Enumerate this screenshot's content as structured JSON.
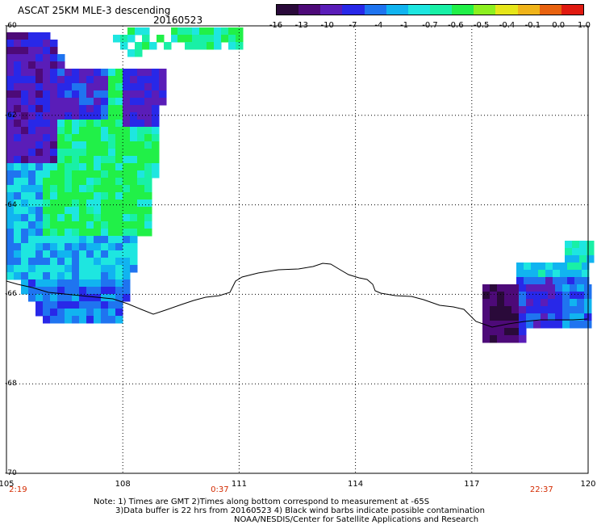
{
  "header": {
    "title": "ASCAT 25KM MLE-3 descending",
    "date": "20160523"
  },
  "colorbar": {
    "ticks": [
      "-16",
      "-13",
      "-10",
      "-7",
      "-4",
      "-1",
      "-0.7",
      "-0.6",
      "-0.5",
      "-0.4",
      "-0.1",
      "0.0",
      "1.0"
    ],
    "colors": [
      "#2a0a3a",
      "#4d0a78",
      "#5a1db8",
      "#2828e8",
      "#1f74f0",
      "#11b4f0",
      "#1ee6e0",
      "#19f0a6",
      "#21f048",
      "#8df020",
      "#e6e61a",
      "#f0b41a",
      "#e8620f",
      "#e01a10"
    ]
  },
  "axes": {
    "lat_labels": [
      "-60",
      "-62",
      "-64",
      "-66",
      "-68",
      "-70"
    ],
    "lat_values": [
      -60,
      -62,
      -64,
      -66,
      -68,
      -70
    ],
    "lon_labels": [
      "105",
      "108",
      "111",
      "114",
      "117",
      "120"
    ],
    "lon_values": [
      105,
      108,
      111,
      114,
      117,
      120
    ],
    "time_labels": [
      "2:19",
      "0:37",
      "22:37"
    ],
    "time_lons": [
      105.3,
      110.5,
      118.8
    ]
  },
  "notes": {
    "line1": "Note: 1) Times are GMT 2)Times along bottom correspond to measurement at -65S",
    "line2": "3)Data buffer is 22 hrs from 20160523 4) Black wind barbs indicate possible contamination",
    "line3": "NOAA/NESDIS/Center for Satellite Applications and Research"
  }
}
